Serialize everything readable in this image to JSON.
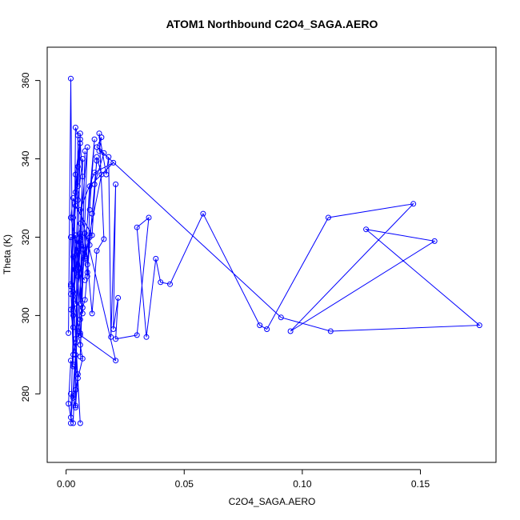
{
  "chart_data": {
    "type": "line",
    "title": "ATOM1 Northbound C2O4_SAGA.AERO",
    "xlabel": "C2O4_SAGA.AERO",
    "ylabel": "Theta (K)",
    "xlim": [
      -0.008,
      0.182
    ],
    "ylim": [
      262.5,
      368.5
    ],
    "xticks": [
      0.0,
      0.05,
      0.1,
      0.15
    ],
    "xtick_labels": [
      "0.00",
      "0.05",
      "0.10",
      "0.15"
    ],
    "yticks": [
      280,
      300,
      320,
      340,
      360
    ],
    "ytick_labels": [
      "280",
      "300",
      "320",
      "340",
      "360"
    ],
    "grid": false,
    "color": "#0000ff",
    "marker": "open-circle",
    "x": [
      0.001,
      0.002,
      0.003,
      0.004,
      0.005,
      0.004,
      0.006,
      0.003,
      0.002,
      0.005,
      0.006,
      0.004,
      0.003,
      0.002,
      0.004,
      0.005,
      0.006,
      0.007,
      0.005,
      0.006,
      0.004,
      0.006,
      0.002,
      0.003,
      0.004,
      0.002,
      0.007,
      0.008,
      0.006,
      0.009,
      0.005,
      0.007,
      0.006,
      0.009,
      0.01,
      0.012,
      0.006,
      0.007,
      0.005,
      0.004,
      0.003,
      0.006,
      0.008,
      0.01,
      0.009,
      0.008,
      0.011,
      0.013,
      0.016,
      0.014,
      0.017,
      0.018,
      0.019,
      0.021,
      0.02,
      0.022,
      0.021,
      0.03,
      0.035,
      0.03,
      0.034,
      0.038,
      0.04,
      0.044,
      0.058,
      0.082,
      0.085,
      0.111,
      0.147,
      0.095,
      0.156,
      0.127,
      0.175,
      0.112,
      0.091,
      0.013,
      0.015,
      0.014,
      0.016,
      0.012,
      0.013,
      0.011,
      0.01,
      0.009,
      0.008,
      0.007,
      0.006,
      0.005,
      0.006,
      0.007,
      0.005,
      0.004,
      0.003,
      0.002,
      0.003,
      0.004,
      0.005,
      0.003,
      0.002,
      0.001,
      0.002,
      0.003,
      0.004,
      0.002,
      0.003,
      0.006,
      0.004,
      0.003,
      0.002,
      0.006,
      0.021,
      0.006,
      0.012,
      0.02,
      0.01,
      0.008,
      0.015,
      0.013,
      0.011,
      0.004,
      0.003,
      0.002,
      0.005,
      0.006,
      0.004,
      0.003,
      0.006,
      0.004,
      0.008
    ],
    "y": [
      295.5,
      360.5,
      287.5,
      348.0,
      346.0,
      277.0,
      346.5,
      325.0,
      308.0,
      338.0,
      345.0,
      336.0,
      300.0,
      305.5,
      331.5,
      333.0,
      344.0,
      335.5,
      310.0,
      295.5,
      294.0,
      318.5,
      320.0,
      297.0,
      320.5,
      272.5,
      317.0,
      342.0,
      289.5,
      343.0,
      316.0,
      300.5,
      323.5,
      310.0,
      327.0,
      345.0,
      303.0,
      340.0,
      329.5,
      312.0,
      305.0,
      319.0,
      314.5,
      320.0,
      313.0,
      321.0,
      300.5,
      316.5,
      319.5,
      346.5,
      336.0,
      340.5,
      294.5,
      333.5,
      296.5,
      304.5,
      294.0,
      295.0,
      325.0,
      322.5,
      294.5,
      314.5,
      308.5,
      308.0,
      326.0,
      297.5,
      296.5,
      325.0,
      328.5,
      296.0,
      319.0,
      322.0,
      297.5,
      296.0,
      299.5,
      343.0,
      345.5,
      342.0,
      341.5,
      333.5,
      339.5,
      326.0,
      318.0,
      311.0,
      304.0,
      302.0,
      299.0,
      296.0,
      292.5,
      289.0,
      284.0,
      281.0,
      279.0,
      280.0,
      279.5,
      276.5,
      285.0,
      287.0,
      288.5,
      277.5,
      274.0,
      272.5,
      290.0,
      301.5,
      306.0,
      272.5,
      293.0,
      290.0,
      307.5,
      295.0,
      288.5,
      327.0,
      336.5,
      339.0,
      333.0,
      315.0,
      336.0,
      340.5,
      320.5,
      328.0,
      330.0,
      325.0,
      316.5,
      312.0,
      303.0,
      315.0,
      321.0,
      311.5,
      309.0
    ]
  }
}
